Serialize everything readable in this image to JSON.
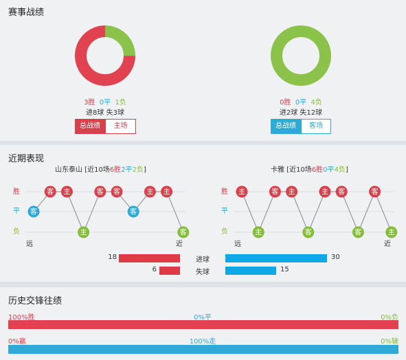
{
  "section1": {
    "title": "赛事战绩",
    "left": {
      "win": "3胜",
      "draw": "0平",
      "loss": "1负",
      "goals_line": "进8球 失3球",
      "btn_total": "总战绩",
      "btn_venue": "主场",
      "ratio": {
        "win": 0.75,
        "draw": 0,
        "loss": 0.25
      }
    },
    "right": {
      "win": "0胜",
      "draw": "0平",
      "loss": "4负",
      "goals_line": "进2球 失12球",
      "btn_total": "总战绩",
      "btn_venue": "客场",
      "ratio": {
        "win": 0,
        "draw": 0,
        "loss": 1
      }
    }
  },
  "section2": {
    "title": "近期表现",
    "left_team": {
      "name": "山东泰山",
      "prefix": " [近10场",
      "w": "6胜",
      "d": "2平",
      "l": "2负",
      "suffix": "]"
    },
    "right_team": {
      "name": "卡雅",
      "prefix": " [近10场",
      "w": "6胜",
      "d": "0平",
      "l": "4负",
      "suffix": "]"
    },
    "row_labels": {
      "win": "胜",
      "draw": "平",
      "loss": "负"
    },
    "far": "远",
    "near": "近",
    "left_results": [
      {
        "r": "draw",
        "v": "客"
      },
      {
        "r": "win",
        "v": "客"
      },
      {
        "r": "win",
        "v": "主"
      },
      {
        "r": "loss",
        "v": "主"
      },
      {
        "r": "win",
        "v": "客"
      },
      {
        "r": "win",
        "v": "客"
      },
      {
        "r": "draw",
        "v": "客"
      },
      {
        "r": "win",
        "v": "主"
      },
      {
        "r": "win",
        "v": "主"
      },
      {
        "r": "loss",
        "v": "客"
      }
    ],
    "right_results": [
      {
        "r": "win",
        "v": "主"
      },
      {
        "r": "loss",
        "v": "主"
      },
      {
        "r": "win",
        "v": "客"
      },
      {
        "r": "win",
        "v": "主"
      },
      {
        "r": "loss",
        "v": "客"
      },
      {
        "r": "win",
        "v": "主"
      },
      {
        "r": "win",
        "v": "客"
      },
      {
        "r": "loss",
        "v": "客"
      },
      {
        "r": "win",
        "v": "客"
      },
      {
        "r": "loss",
        "v": "主"
      }
    ],
    "goals": {
      "for_label": "进球",
      "against_label": "失球",
      "left_for": 18,
      "left_against": 6,
      "right_for": 30,
      "right_against": 15
    }
  },
  "section3": {
    "title": "历史交锋往绩",
    "row1": {
      "left": "100%胜",
      "mid": "0%平",
      "right": "0%负",
      "fill": 1.0
    },
    "row2": {
      "left": "0%赢",
      "mid": "100%走",
      "right": "0%输",
      "fill": 1.0
    }
  },
  "colors": {
    "red": "#d8404c",
    "blue": "#2fa9d6",
    "green": "#84bd3a",
    "bar_red": "#e03a45",
    "bar_blue": "#0ea8e6"
  }
}
